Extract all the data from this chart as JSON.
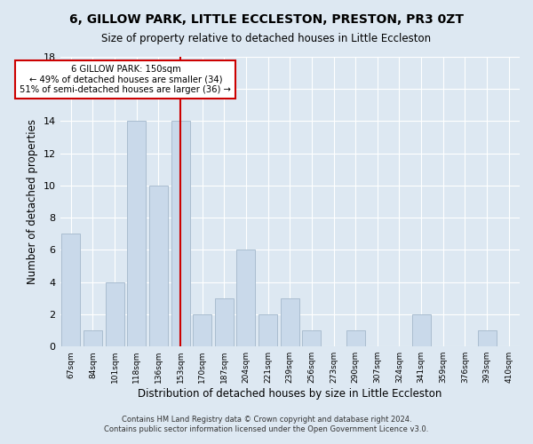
{
  "title1": "6, GILLOW PARK, LITTLE ECCLESTON, PRESTON, PR3 0ZT",
  "title2": "Size of property relative to detached houses in Little Eccleston",
  "xlabel": "Distribution of detached houses by size in Little Eccleston",
  "ylabel": "Number of detached properties",
  "bar_labels": [
    "67sqm",
    "84sqm",
    "101sqm",
    "118sqm",
    "136sqm",
    "153sqm",
    "170sqm",
    "187sqm",
    "204sqm",
    "221sqm",
    "239sqm",
    "256sqm",
    "273sqm",
    "290sqm",
    "307sqm",
    "324sqm",
    "341sqm",
    "359sqm",
    "376sqm",
    "393sqm",
    "410sqm"
  ],
  "bar_values": [
    7,
    1,
    4,
    14,
    10,
    14,
    2,
    3,
    6,
    2,
    3,
    1,
    0,
    1,
    0,
    0,
    2,
    0,
    0,
    1,
    0
  ],
  "bar_color": "#c9d9ea",
  "bar_edge_color": "#aabdd0",
  "vline_x": 5,
  "vline_color": "#cc0000",
  "annotation_title": "6 GILLOW PARK: 150sqm",
  "annotation_line1": "← 49% of detached houses are smaller (34)",
  "annotation_line2": "51% of semi-detached houses are larger (36) →",
  "annotation_box_facecolor": "#ffffff",
  "annotation_box_edgecolor": "#cc0000",
  "ylim": [
    0,
    18
  ],
  "yticks": [
    0,
    2,
    4,
    6,
    8,
    10,
    12,
    14,
    16,
    18
  ],
  "footer1": "Contains HM Land Registry data © Crown copyright and database right 2024.",
  "footer2": "Contains public sector information licensed under the Open Government Licence v3.0.",
  "bg_color": "#dde8f2",
  "plot_bg_color": "#dde8f2",
  "grid_color": "#ffffff"
}
